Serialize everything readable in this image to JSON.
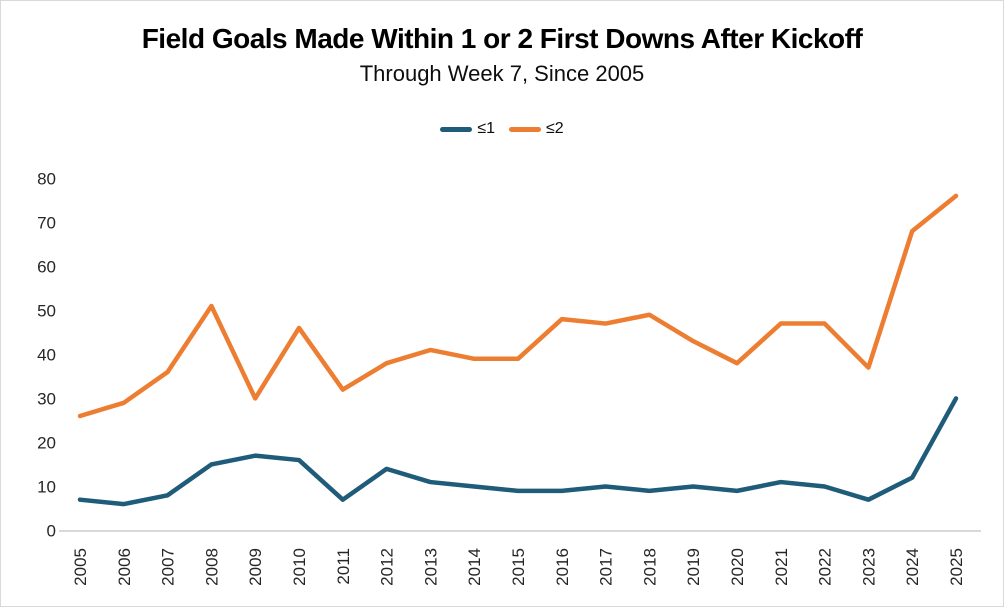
{
  "header": {
    "title": "Field Goals Made Within 1 or 2 First Downs After Kickoff",
    "subtitle": "Through Week 7, Since 2005"
  },
  "chart_data": {
    "type": "line",
    "title": "Field Goals Made Within 1 or 2 First Downs After Kickoff",
    "subtitle": "Through Week 7, Since 2005",
    "x": [
      2005,
      2006,
      2007,
      2008,
      2009,
      2010,
      2011,
      2012,
      2013,
      2014,
      2015,
      2016,
      2017,
      2018,
      2019,
      2020,
      2021,
      2022,
      2023,
      2024,
      2025
    ],
    "series": [
      {
        "name": "≤1",
        "color": "#1F5C7A",
        "values": [
          7,
          6,
          8,
          15,
          17,
          16,
          7,
          14,
          11,
          10,
          9,
          9,
          10,
          9,
          10,
          9,
          11,
          10,
          7,
          12,
          30
        ]
      },
      {
        "name": "≤2",
        "color": "#ED7D31",
        "values": [
          26,
          29,
          36,
          51,
          30,
          46,
          32,
          38,
          41,
          39,
          39,
          48,
          47,
          49,
          43,
          38,
          47,
          47,
          37,
          68,
          76
        ]
      }
    ],
    "xlabel": "",
    "ylabel": "",
    "ylim": [
      0,
      80
    ],
    "y_ticks": [
      0,
      10,
      20,
      30,
      40,
      50,
      60,
      70,
      80
    ],
    "grid": false,
    "legend_position": "top-center",
    "axis_line_color": "#D9D9D9",
    "tick_label_color": "#262626",
    "background_color": "#FFFFFF"
  }
}
